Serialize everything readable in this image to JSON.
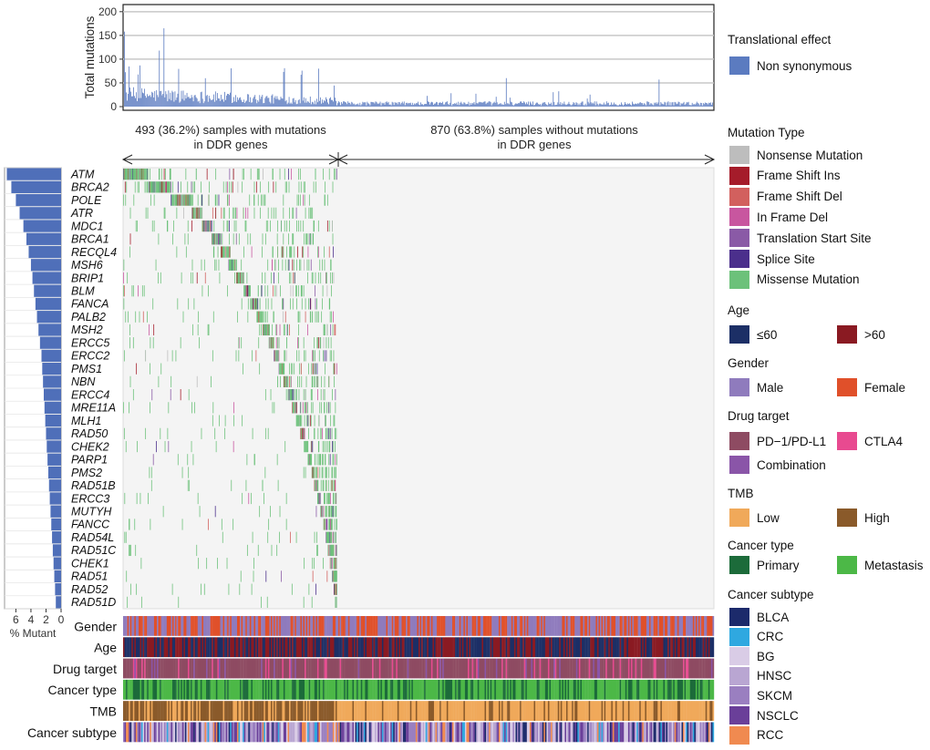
{
  "chart_data": {
    "type": "oncoplot",
    "top_bar": {
      "ylabel": "Total mutations",
      "yticks": [
        0,
        50,
        100,
        150,
        200
      ],
      "ylim": [
        0,
        215
      ],
      "series_name": "Non synonymous",
      "color": "#5b7bc0",
      "peaks": [
        {
          "frac": 0.0,
          "value": 158
        },
        {
          "frac": 0.068,
          "value": 165
        },
        {
          "frac": 0.06,
          "value": 118
        },
        {
          "frac": 0.33,
          "value": 80
        },
        {
          "frac": 0.65,
          "value": 60
        },
        {
          "frac": 0.91,
          "value": 57
        }
      ]
    },
    "split": {
      "left_text_line1": "493 (36.2%) samples with mutations",
      "left_text_line2": "in DDR genes",
      "right_text_line1": "870 (63.8%) samples without mutations",
      "right_text_line2": "in DDR genes",
      "mutated_samples": 493,
      "total_samples": 1363
    },
    "genes": [
      "ATM",
      "BRCA2",
      "POLE",
      "ATR",
      "MDC1",
      "BRCA1",
      "RECQL4",
      "MSH6",
      "BRIP1",
      "BLM",
      "FANCA",
      "PALB2",
      "MSH2",
      "ERCC5",
      "ERCC2",
      "PMS1",
      "NBN",
      "ERCC4",
      "MRE11A",
      "MLH1",
      "RAD50",
      "CHEK2",
      "PARP1",
      "PMS2",
      "RAD51B",
      "ERCC3",
      "MUTYH",
      "FANCC",
      "RAD54L",
      "RAD51C",
      "CHEK1",
      "RAD51",
      "RAD52",
      "RAD51D"
    ],
    "percent_mutant": [
      7.2,
      6.6,
      6.0,
      5.5,
      5.0,
      4.6,
      4.3,
      4.0,
      3.8,
      3.6,
      3.4,
      3.2,
      3.0,
      2.8,
      2.6,
      2.5,
      2.4,
      2.3,
      2.2,
      2.1,
      2.0,
      1.9,
      1.8,
      1.7,
      1.6,
      1.5,
      1.4,
      1.3,
      1.2,
      1.1,
      1.0,
      0.9,
      0.8,
      0.7
    ],
    "percent_axis": {
      "label": "% Mutant",
      "ticks": [
        6,
        4,
        2,
        0
      ],
      "max": 7.5
    },
    "annotation_tracks": [
      "Gender",
      "Age",
      "Drug target",
      "Cancer type",
      "TMB",
      "Cancer subtype"
    ],
    "legend": {
      "translational": {
        "title": "Translational effect",
        "items": [
          {
            "label": "Non synonymous",
            "color": "#5b7bc0"
          }
        ]
      },
      "mutation_type": {
        "title": "Mutation Type",
        "items": [
          {
            "label": "Nonsense Mutation",
            "color": "#bdbdbd"
          },
          {
            "label": "Frame Shift Ins",
            "color": "#a51c2a"
          },
          {
            "label": "Frame Shift Del",
            "color": "#d2605e"
          },
          {
            "label": "In Frame Del",
            "color": "#c8569f"
          },
          {
            "label": "Translation Start Site",
            "color": "#8a5aa6"
          },
          {
            "label": "Splice Site",
            "color": "#4b2f8c"
          },
          {
            "label": "Missense Mutation",
            "color": "#6cc17a"
          }
        ]
      },
      "age": {
        "title": "Age",
        "items": [
          {
            "label": "≤60",
            "color": "#1c2f66"
          },
          {
            "label": ">60",
            "color": "#8a1a22"
          }
        ]
      },
      "gender": {
        "title": "Gender",
        "items": [
          {
            "label": "Male",
            "color": "#8f7bbd"
          },
          {
            "label": "Female",
            "color": "#e0502a"
          }
        ]
      },
      "drug_target": {
        "title": "Drug target",
        "items": [
          {
            "label": "PD−1/PD-L1",
            "color": "#8e4b62"
          },
          {
            "label": "CTLA4",
            "color": "#e84a90"
          },
          {
            "label": "Combination",
            "color": "#8a55a8"
          }
        ]
      },
      "tmb": {
        "title": "TMB",
        "items": [
          {
            "label": "Low",
            "color": "#f0a95a"
          },
          {
            "label": "High",
            "color": "#8a5a2a"
          }
        ]
      },
      "cancer_type": {
        "title": "Cancer type",
        "items": [
          {
            "label": "Primary",
            "color": "#1c6b3a"
          },
          {
            "label": "Metastasis",
            "color": "#4cb847"
          }
        ]
      },
      "cancer_subtype": {
        "title": "Cancer subtype",
        "items": [
          {
            "label": "BLCA",
            "color": "#1c2a6b"
          },
          {
            "label": "CRC",
            "color": "#2fa8e0"
          },
          {
            "label": "BG",
            "color": "#d9cce6"
          },
          {
            "label": "HNSC",
            "color": "#b9a6d2"
          },
          {
            "label": "SKCM",
            "color": "#9a7fc0"
          },
          {
            "label": "NSCLC",
            "color": "#6a3f99"
          },
          {
            "label": "RCC",
            "color": "#f08a50"
          }
        ]
      }
    }
  }
}
